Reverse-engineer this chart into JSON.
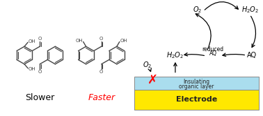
{
  "slower_label": "Slower",
  "faster_label": "Faster",
  "slower_color": "black",
  "faster_color": "#FF0000",
  "electrode_color": "#FFE800",
  "insulating_layer_color": "#AADDEE",
  "electrode_label": "Electrode",
  "insulating_label1": "Insulating",
  "insulating_label2": "organic layer",
  "mol_color": "#444444",
  "figsize": [
    3.78,
    1.68
  ],
  "dpi": 100
}
